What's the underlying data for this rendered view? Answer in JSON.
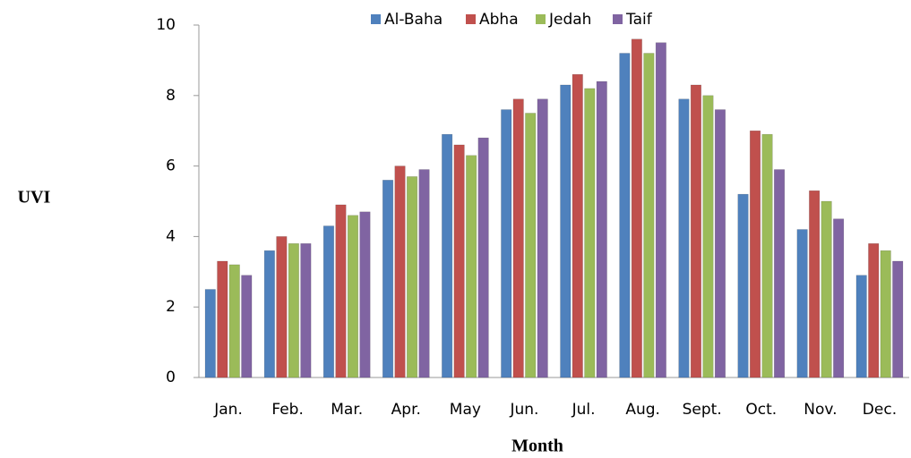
{
  "chart_data": {
    "type": "bar",
    "x_label": "Month",
    "y_label": "UVI",
    "categories": [
      "Jan.",
      "Feb.",
      "Mar.",
      "Apr.",
      "May",
      "Jun.",
      "Jul.",
      "Aug.",
      "Sept.",
      "Oct.",
      "Nov.",
      "Dec."
    ],
    "series": [
      {
        "name": "Al-Baha",
        "color": "#4f81bd",
        "values": [
          2.5,
          3.6,
          4.3,
          5.6,
          6.9,
          7.6,
          8.3,
          9.2,
          7.9,
          5.2,
          4.2,
          2.9
        ]
      },
      {
        "name": "Abha",
        "color": "#c0504d",
        "values": [
          3.3,
          4.0,
          4.9,
          6.0,
          6.6,
          7.9,
          8.6,
          9.6,
          8.3,
          7.0,
          5.3,
          3.8
        ]
      },
      {
        "name": "Jedah",
        "color": "#9bbb59",
        "values": [
          3.2,
          3.8,
          4.6,
          5.7,
          6.3,
          7.5,
          8.2,
          9.2,
          8.0,
          6.9,
          5.0,
          3.6
        ]
      },
      {
        "name": "Taif",
        "color": "#8064a2",
        "values": [
          2.9,
          3.8,
          4.7,
          5.9,
          6.8,
          7.9,
          8.4,
          9.5,
          7.6,
          5.9,
          4.5,
          3.3
        ]
      }
    ],
    "ylim": [
      0,
      10
    ],
    "yticks": [
      0,
      2,
      4,
      6,
      8,
      10
    ],
    "grid": false,
    "legend": "top"
  }
}
